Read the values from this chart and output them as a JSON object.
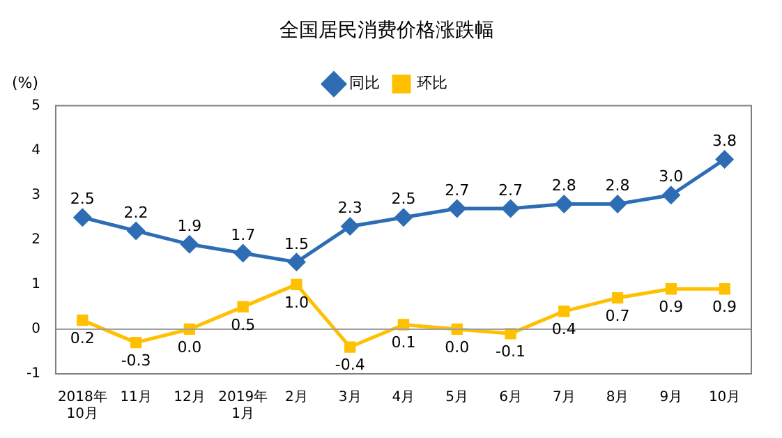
{
  "chart_data": {
    "type": "line",
    "title": "全国居民消费价格涨跌幅",
    "ylabel": "(%)",
    "categories": [
      "2018年\n10月",
      "11月",
      "12月",
      "2019年\n1月",
      "2月",
      "3月",
      "4月",
      "5月",
      "6月",
      "7月",
      "8月",
      "9月",
      "10月"
    ],
    "series": [
      {
        "name": "同比",
        "color": "#2e6db4",
        "marker": "diamond",
        "values": [
          2.5,
          2.2,
          1.9,
          1.7,
          1.5,
          2.3,
          2.5,
          2.7,
          2.7,
          2.8,
          2.8,
          3.0,
          3.8
        ],
        "value_labels": [
          "2.5",
          "2.2",
          "1.9",
          "1.7",
          "1.5",
          "2.3",
          "2.5",
          "2.7",
          "2.7",
          "2.8",
          "2.8",
          "3.0",
          "3.8"
        ]
      },
      {
        "name": "环比",
        "color": "#ffc000",
        "marker": "square",
        "values": [
          0.2,
          -0.3,
          0.0,
          0.5,
          1.0,
          -0.4,
          0.1,
          0.0,
          -0.1,
          0.4,
          0.7,
          0.9,
          0.9
        ],
        "value_labels": [
          "0.2",
          "-0.3",
          "0.0",
          "0.5",
          "1.0",
          "-0.4",
          "0.1",
          "0.0",
          "-0.1",
          "0.4",
          "0.7",
          "0.9",
          "0.9"
        ]
      }
    ],
    "ylim": [
      -1,
      5
    ],
    "yticks": [
      -1,
      0,
      1,
      2,
      3,
      4,
      5
    ],
    "grid": false,
    "legend": "top",
    "line_style": "solid",
    "ref_lines": [
      {
        "axis": "y",
        "value": 0,
        "color": "#a0a0a0"
      }
    ]
  }
}
